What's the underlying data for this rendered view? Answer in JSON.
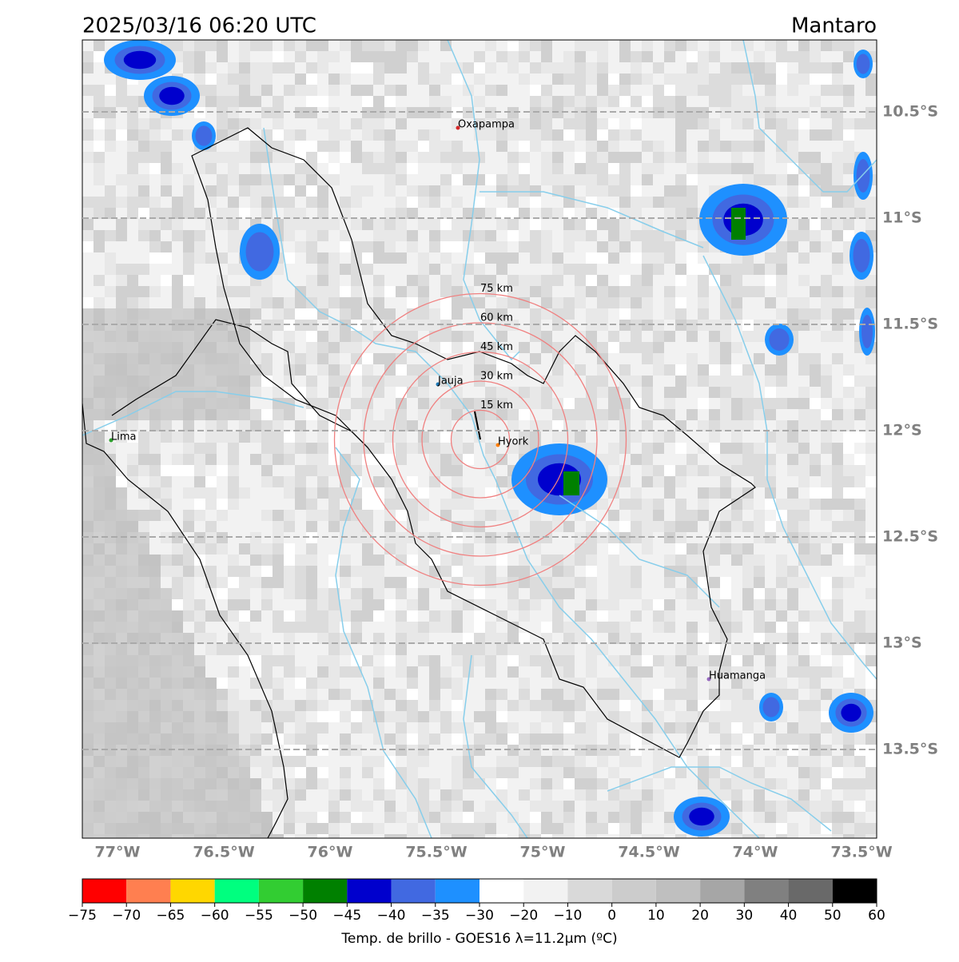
{
  "header": {
    "title": "2025/03/16 06:20 UTC",
    "region": "Mantaro"
  },
  "map": {
    "xticks": [
      {
        "value": -77,
        "label": "77°W"
      },
      {
        "value": -76.5,
        "label": "76.5°W"
      },
      {
        "value": -76,
        "label": "76°W"
      },
      {
        "value": -75.5,
        "label": "75.5°W"
      },
      {
        "value": -75,
        "label": "75°W"
      },
      {
        "value": -74.5,
        "label": "74.5°W"
      },
      {
        "value": -74,
        "label": "74°W"
      },
      {
        "value": -73.5,
        "label": "73.5°W"
      }
    ],
    "yticks": [
      {
        "value": -10.5,
        "label": "10.5°S"
      },
      {
        "value": -11,
        "label": "11°S"
      },
      {
        "value": -11.5,
        "label": "11.5°S"
      },
      {
        "value": -12,
        "label": "12°S"
      },
      {
        "value": -12.5,
        "label": "12.5°S"
      },
      {
        "value": -13,
        "label": "13°S"
      },
      {
        "value": -13.5,
        "label": "13.5°S"
      }
    ],
    "cities": [
      "Oxapampa",
      "Lima",
      "Jauja",
      "Hyork",
      "Huamanga"
    ],
    "rings": [
      "15 km",
      "30 km",
      "45 km",
      "60 km",
      "75 km"
    ]
  },
  "colorbar": {
    "label": "Temp. de brillo - GOES16 λ=11.2μm (ºC)",
    "colors": [
      "#ff0000",
      "#ff7f50",
      "#ffd700",
      "#00ff7f",
      "#32cd32",
      "#008000",
      "#0000cd",
      "#4169e1",
      "#1e90ff",
      "#ffffff",
      "#f2f2f2",
      "#d9d9d9",
      "#cccccc",
      "#bfbfbf",
      "#a6a6a6",
      "#808080",
      "#696969",
      "#000000"
    ],
    "ticks": [
      {
        "value": -75,
        "label": "−75"
      },
      {
        "value": -70,
        "label": "−70"
      },
      {
        "value": -65,
        "label": "−65"
      },
      {
        "value": -60,
        "label": "−60"
      },
      {
        "value": -55,
        "label": "−55"
      },
      {
        "value": -50,
        "label": "−50"
      },
      {
        "value": -45,
        "label": "−45"
      },
      {
        "value": -40,
        "label": "−40"
      },
      {
        "value": -35,
        "label": "−35"
      },
      {
        "value": -30,
        "label": "−30"
      },
      {
        "value": -20,
        "label": "−20"
      },
      {
        "value": -10,
        "label": "−10"
      },
      0,
      10,
      20,
      30,
      40,
      50,
      60
    ]
  }
}
